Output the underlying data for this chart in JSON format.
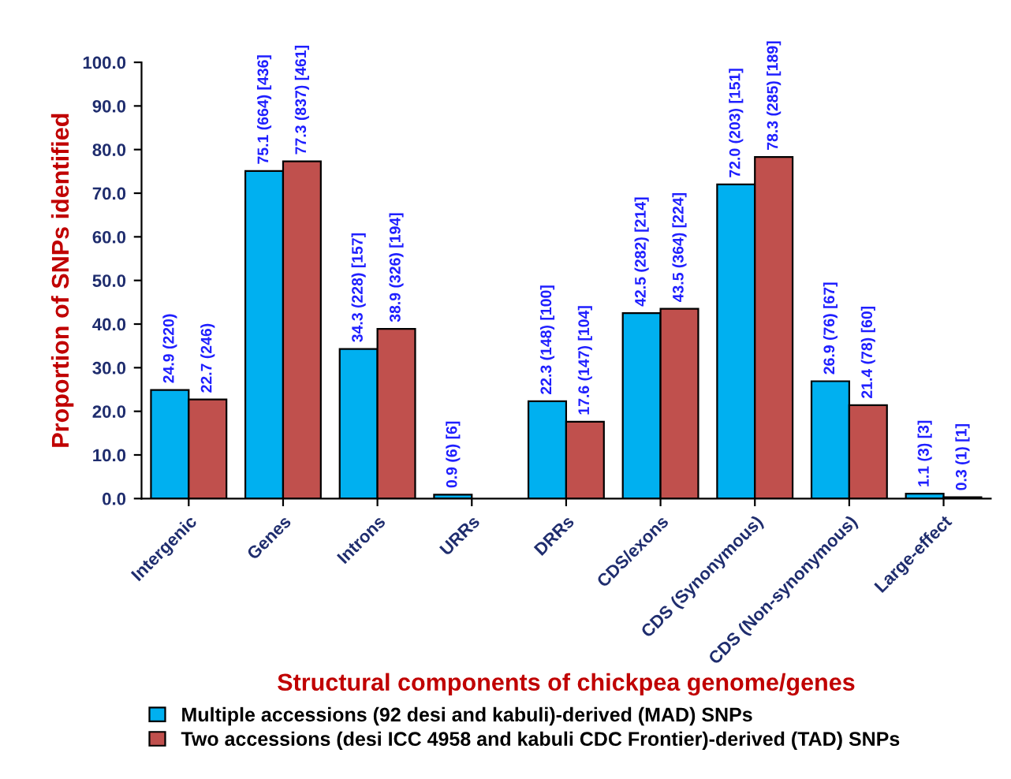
{
  "chart_data": {
    "type": "bar",
    "xlabel": "Structural components of chickpea genome/genes",
    "ylabel": "Proportion of SNPs identified",
    "categories": [
      "Intergenic",
      "Genes",
      "Introns",
      "URRs",
      "DRRs",
      "CDS/exons",
      "CDS (Synonymous)",
      "CDS (Non-synonymous)",
      "Large-effect"
    ],
    "series": [
      {
        "name": "Multiple accessions (92 desi and kabuli)-derived (MAD) SNPs",
        "color": "#00b0f0",
        "values": [
          24.9,
          75.1,
          34.3,
          0.9,
          22.3,
          42.5,
          72.0,
          26.9,
          1.1
        ],
        "value_labels": [
          "24.9 (220)",
          "75.1 (664) [436]",
          "34.3 (228) [157]",
          "0.9 (6) [6]",
          "22.3 (148) [100]",
          "42.5 (282) [214]",
          "72.0 (203) [151]",
          "26.9 (76) [67]",
          "1.1 (3) [3]"
        ]
      },
      {
        "name": "Two accessions (desi ICC 4958 and kabuli CDC Frontier)-derived (TAD) SNPs",
        "color": "#c0504d",
        "values": [
          22.7,
          77.3,
          38.9,
          null,
          17.6,
          43.5,
          78.3,
          21.4,
          0.3
        ],
        "value_labels": [
          "22.7 (246)",
          "77.3 (837) [461]",
          "38.9 (326) [194]",
          null,
          "17.6 (147) [104]",
          "43.5 (364) [224]",
          "78.3 (285) [189]",
          "21.4 (78) [60]",
          "0.3 (1) [1]"
        ]
      }
    ],
    "ylim": [
      0,
      100
    ],
    "yticks": [
      {
        "value": 0,
        "label": "0.0"
      },
      {
        "value": 10,
        "label": "10.0"
      },
      {
        "value": 20,
        "label": "20.0"
      },
      {
        "value": 30,
        "label": "30.0"
      },
      {
        "value": 40,
        "label": "40.0"
      },
      {
        "value": 50,
        "label": "50.0"
      },
      {
        "value": 60,
        "label": "60.0"
      },
      {
        "value": 70,
        "label": "70.0"
      },
      {
        "value": 80,
        "label": "80.0"
      },
      {
        "value": 90,
        "label": "90.0"
      },
      {
        "value": 100,
        "label": "100.0"
      }
    ],
    "grid": false,
    "legend": "bottom"
  }
}
